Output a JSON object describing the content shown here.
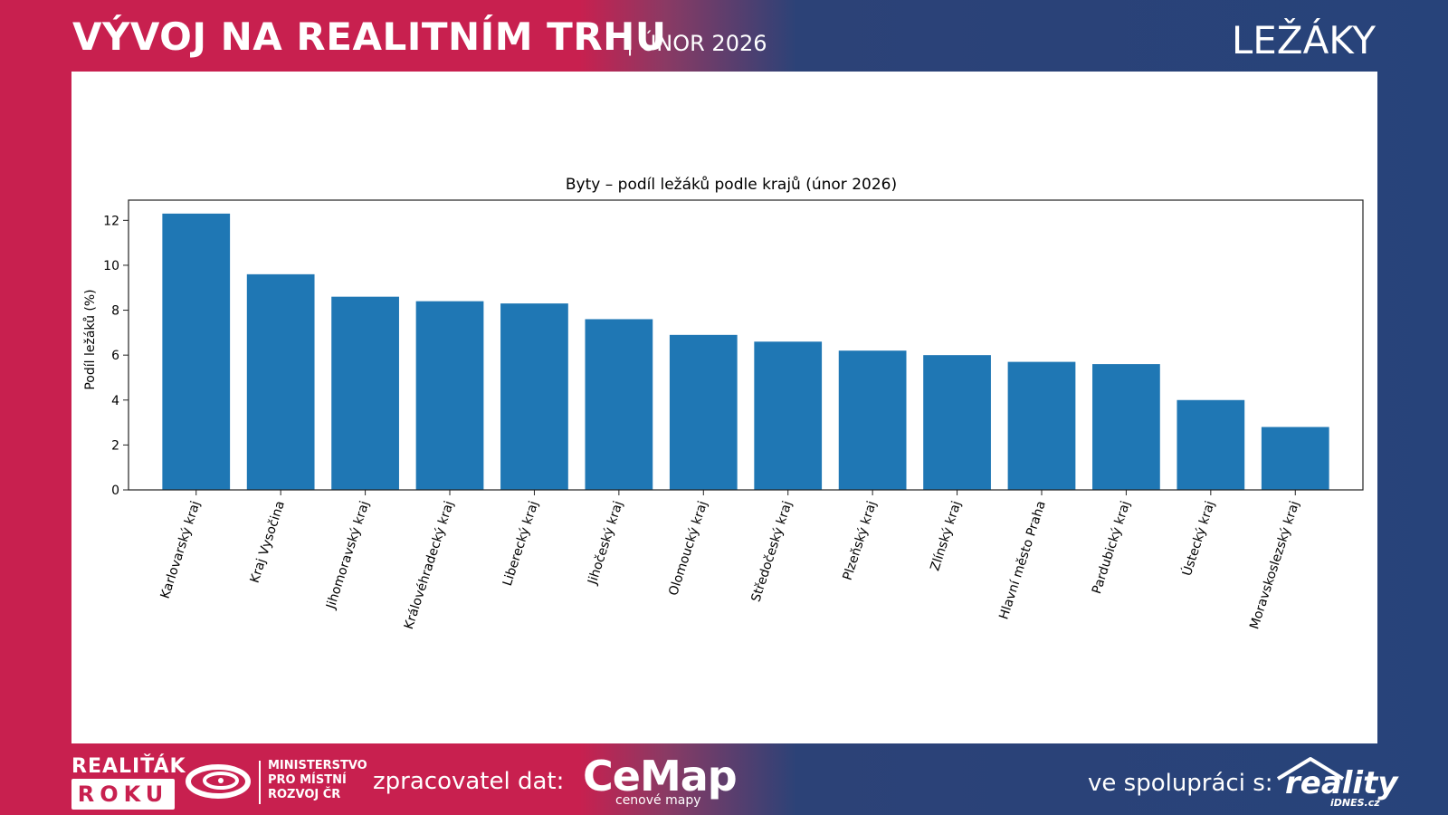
{
  "header": {
    "title": "VÝVOJ NA REALITNÍM TRHU",
    "subtitle": "| ÚNOR 2026",
    "section": "LEŽÁKY"
  },
  "chart_data": {
    "type": "bar",
    "title": "Byty – podíl ležáků podle krajů (únor 2026)",
    "xlabel": "",
    "ylabel": "Podíl ležáků (%)",
    "ylim": [
      0,
      12.9
    ],
    "yticks": [
      0,
      2,
      4,
      6,
      8,
      10,
      12
    ],
    "color": "#1f77b4",
    "grid": false,
    "categories": [
      "Karlovarský kraj",
      "Kraj Vysočina",
      "Jihomoravský kraj",
      "Královéhradecký kraj",
      "Liberecký kraj",
      "Jihočeský kraj",
      "Olomoucký kraj",
      "Středočeský kraj",
      "Plzeňský kraj",
      "Zlínský kraj",
      "Hlavní město Praha",
      "Pardubický kraj",
      "Ústecký kraj",
      "Moravskoslezský kraj"
    ],
    "values": [
      12.3,
      9.6,
      8.6,
      8.4,
      8.3,
      7.6,
      6.9,
      6.6,
      6.2,
      6.0,
      5.7,
      5.6,
      4.0,
      2.8
    ]
  },
  "footer": {
    "brand_top": "REALIŤÁK",
    "brand_bottom": "ROKU",
    "ministry_line1": "MINISTERSTVO",
    "ministry_line2": "PRO MÍSTNÍ",
    "ministry_line3": "ROZVOJ ČR",
    "processor_label": "zpracovatel dat:",
    "cemap_name": "CeMap",
    "cemap_sub": "cenové mapy",
    "coop_label": "ve spolupráci s:",
    "reality_name": "reality",
    "reality_sub": "iDNES.cz"
  }
}
